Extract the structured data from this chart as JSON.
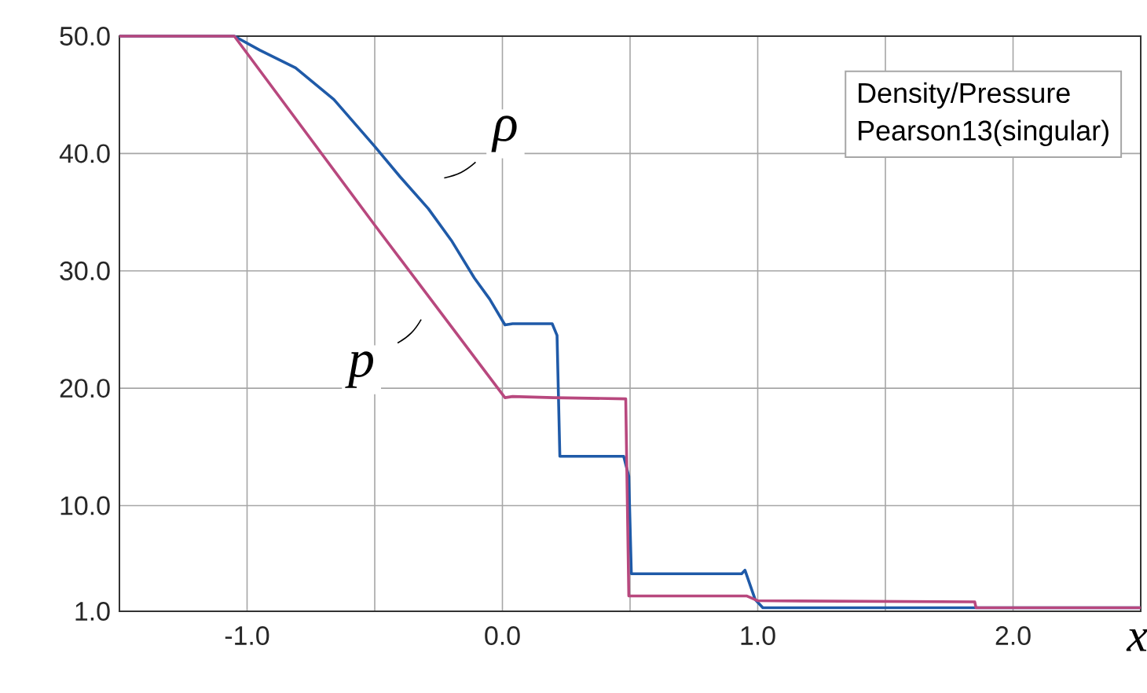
{
  "chart_data": {
    "type": "line",
    "xlabel": "x",
    "xlim": [
      -1.5,
      2.5
    ],
    "ylim": [
      1,
      50
    ],
    "xticks": [
      {
        "value": -1,
        "label": "-1.0"
      },
      {
        "value": -0.5,
        "label": null
      },
      {
        "value": 0,
        "label": "0.0"
      },
      {
        "value": 0.5,
        "label": null
      },
      {
        "value": 1,
        "label": "1.0"
      },
      {
        "value": 1.5,
        "label": null
      },
      {
        "value": 2,
        "label": "2.0"
      }
    ],
    "yticks": [
      {
        "value": 1,
        "label": "1.0"
      },
      {
        "value": 10,
        "label": "10.0"
      },
      {
        "value": 20,
        "label": "20.0"
      },
      {
        "value": 30,
        "label": "30.0"
      },
      {
        "value": 40,
        "label": "40.0"
      },
      {
        "value": 50,
        "label": "50.0"
      }
    ],
    "grid": true,
    "marker": "none",
    "line_style": "solid",
    "series": [
      {
        "color": "#1f5aa8",
        "x": [
          -1.5,
          -1.05,
          -0.95,
          -0.81,
          -0.66,
          -0.5,
          -0.4,
          -0.29,
          -0.2,
          -0.11,
          -0.05,
          0.01,
          0.04,
          0.195,
          0.214,
          0.225,
          0.475,
          0.495,
          0.505,
          0.937,
          0.95,
          0.99,
          1.02,
          2.5
        ],
        "values": [
          50,
          50,
          48.8,
          47.3,
          44.6,
          40.6,
          38,
          35.3,
          32.6,
          29.4,
          27.6,
          25.4,
          25.5,
          25.5,
          24.5,
          14.2,
          14.2,
          12.5,
          4.2,
          4.2,
          4.5,
          2.0,
          1.3,
          1.3
        ]
      },
      {
        "color": "#b8487e",
        "x": [
          -1.5,
          -1.05,
          -0.5,
          0.01,
          0.04,
          0.2,
          0.483,
          0.495,
          0.958,
          1.0,
          1.85,
          1.855,
          2.5
        ],
        "values": [
          50,
          50,
          33.9,
          19.2,
          19.3,
          19.2,
          19.1,
          2.3,
          2.3,
          1.9,
          1.8,
          1.3,
          1.3
        ]
      }
    ],
    "annotations": [
      "ρ",
      "p",
      "Density/Pressure",
      "Pearson13(singular)"
    ]
  }
}
